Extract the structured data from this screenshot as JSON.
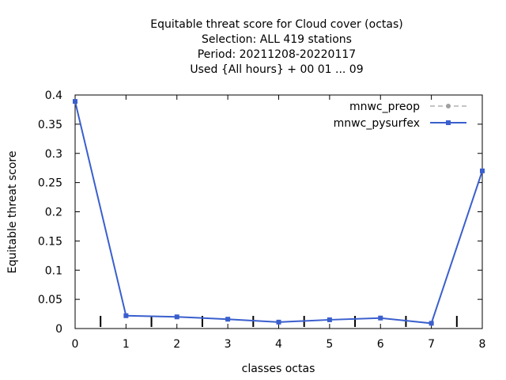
{
  "chart_data": {
    "type": "line",
    "title_lines": [
      "Equitable threat score  for Cloud cover (octas)",
      "Selection: ALL     419 stations",
      "Period: 20211208-20220117",
      "Used {All hours} + 00 01 ... 09"
    ],
    "xlabel": "classes octas",
    "ylabel": "Equitable threat score",
    "xlim": [
      0,
      8
    ],
    "ylim": [
      0,
      0.4
    ],
    "xticks": [
      0,
      1,
      2,
      3,
      4,
      5,
      6,
      7,
      8
    ],
    "yticks": [
      0,
      0.05,
      0.1,
      0.15,
      0.2,
      0.25,
      0.3,
      0.35,
      0.4
    ],
    "ytick_labels": [
      "0",
      "0.05",
      "0.1",
      "0.15",
      "0.2",
      "0.25",
      "0.3",
      "0.35",
      "0.4"
    ],
    "class_bar_positions": [
      0.5,
      1.5,
      2.5,
      3.5,
      4.5,
      5.5,
      6.5,
      7.5
    ],
    "x": [
      0,
      1,
      2,
      3,
      4,
      5,
      6,
      7,
      8
    ],
    "series": [
      {
        "name": "mnwc_preop",
        "values": [
          0.389,
          0.022,
          0.02,
          0.016,
          0.011,
          0.015,
          0.018,
          0.009,
          0.27
        ],
        "color": "#a0a0a0",
        "dashed": true
      },
      {
        "name": "mnwc_pysurfex",
        "values": [
          0.389,
          0.022,
          0.02,
          0.016,
          0.011,
          0.015,
          0.018,
          0.009,
          0.27
        ],
        "color": "#3a5fcd",
        "dashed": false
      }
    ],
    "legend_position": "top-right",
    "grid": false
  }
}
